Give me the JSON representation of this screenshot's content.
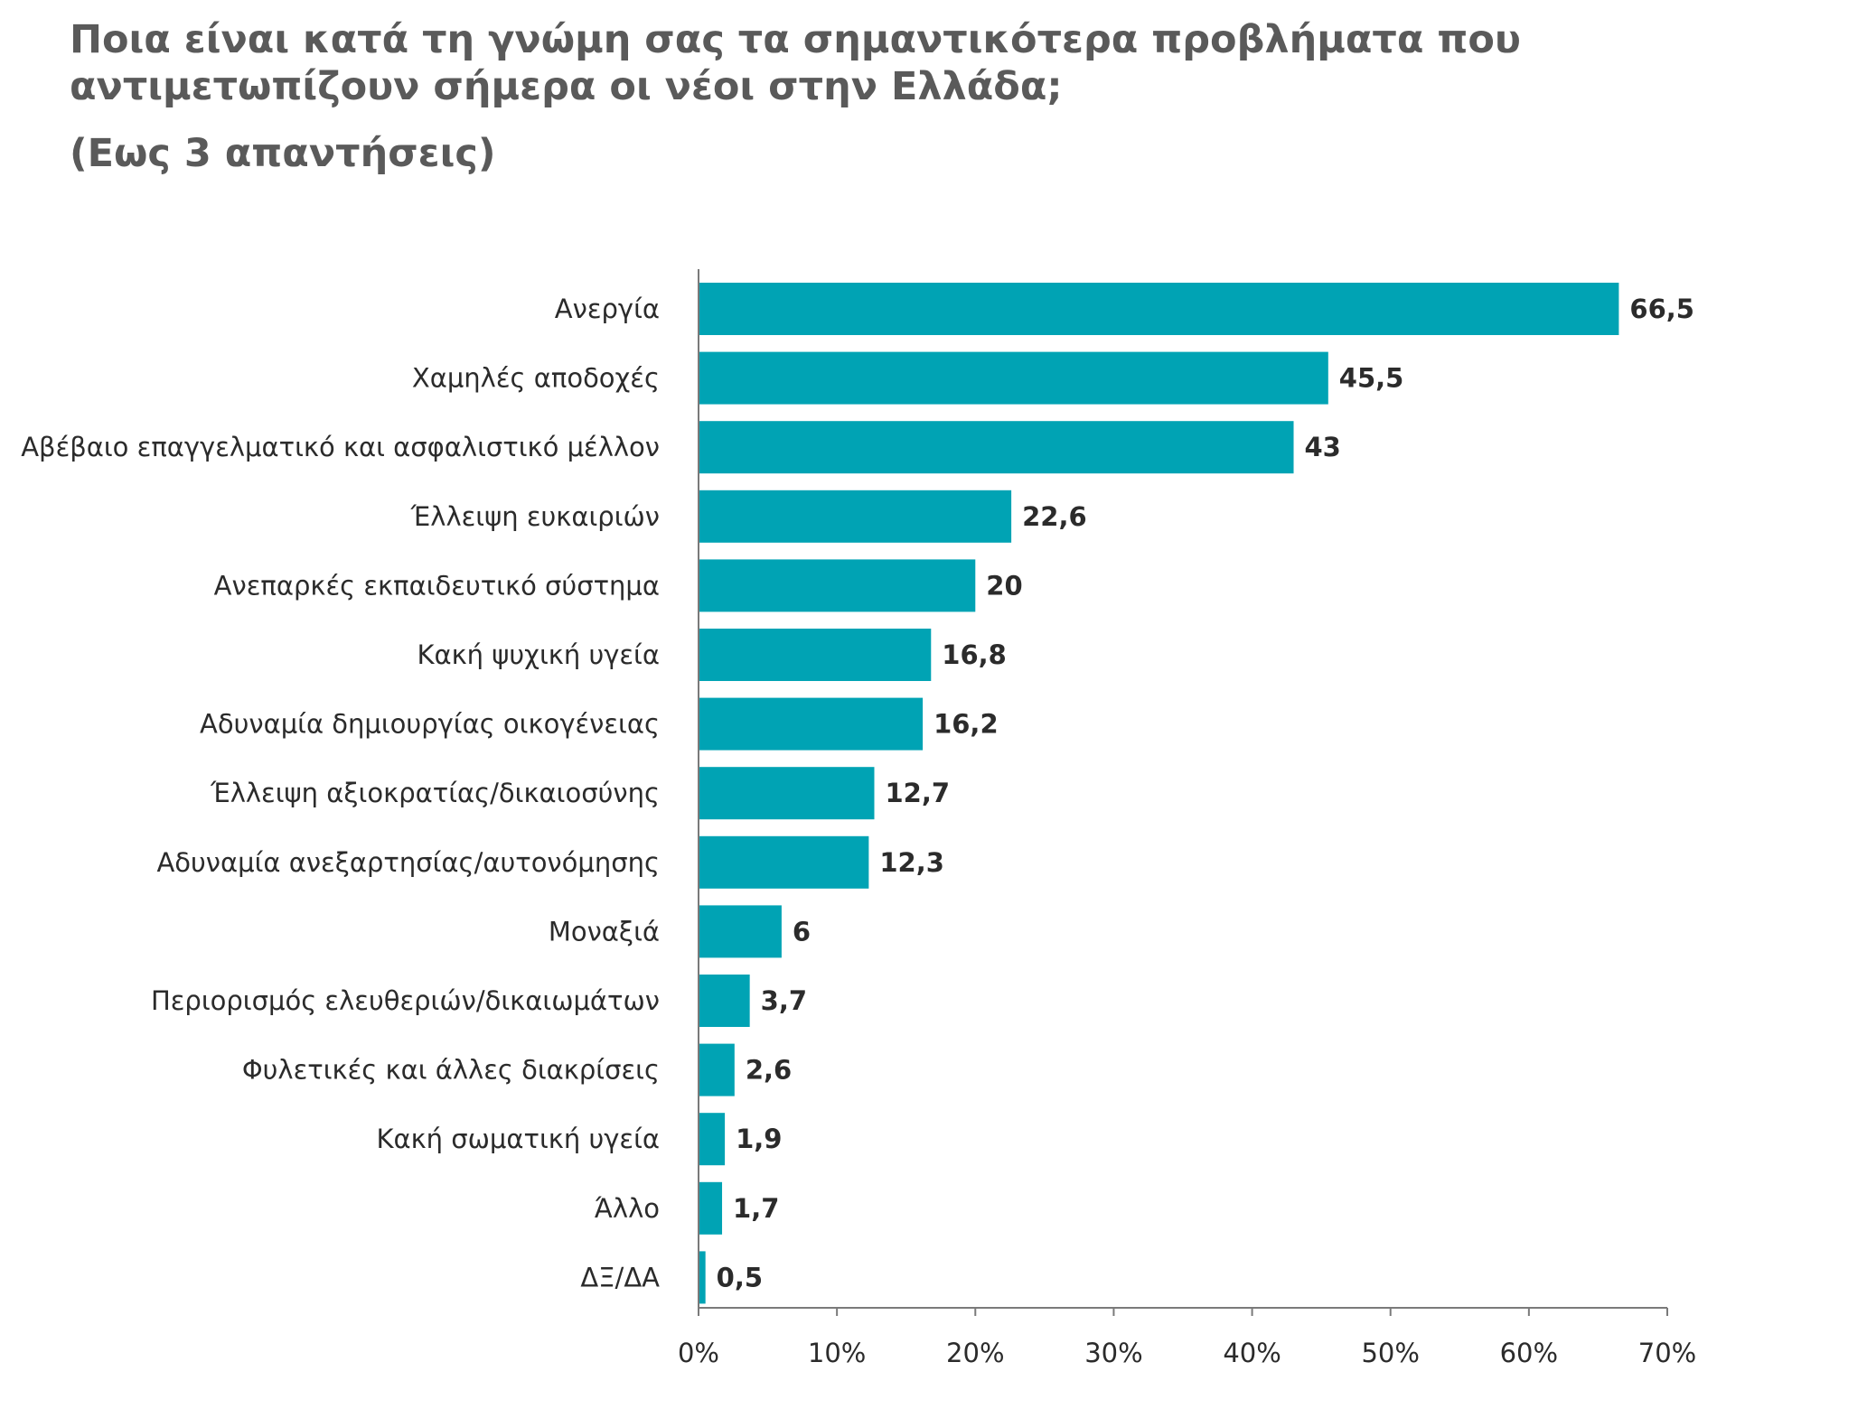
{
  "title": "Ποια είναι κατά τη γνώμη σας τα σημαντικότερα προβλήματα που αντιμετωπίζουν σήμερα οι νέοι στην Ελλάδα;",
  "subtitle": "(Εως 3 απαντήσεις)",
  "colors": {
    "bar": "#00a3b4",
    "axis": "#7a7a7a",
    "title": "#5a5a5a",
    "text": "#2b2b2b"
  },
  "chart_data": {
    "type": "bar",
    "orientation": "horizontal",
    "categories": [
      "Ανεργία",
      "Χαμηλές αποδοχές",
      "Αβέβαιο επαγγελματικό και ασφαλιστικό μέλλον",
      "Έλλειψη ευκαιριών",
      "Ανεπαρκές εκπαιδευτικό σύστημα",
      "Κακή ψυχική υγεία",
      "Αδυναμία δημιουργίας οικογένειας",
      "Έλλειψη αξιοκρατίας/δικαιοσύνης",
      "Αδυναμία ανεξαρτησίας/αυτονόμησης",
      "Μοναξιά",
      "Περιορισμός ελευθεριών/δικαιωμάτων",
      "Φυλετικές και άλλες διακρίσεις",
      "Κακή σωματική υγεία",
      "Άλλο",
      "ΔΞ/ΔΑ"
    ],
    "values": [
      66.5,
      45.5,
      43,
      22.6,
      20,
      16.8,
      16.2,
      12.7,
      12.3,
      6,
      3.7,
      2.6,
      1.9,
      1.7,
      0.5
    ],
    "value_labels": [
      "66,5",
      "45,5",
      "43",
      "22,6",
      "20",
      "16,8",
      "16,2",
      "12,7",
      "12,3",
      "6",
      "3,7",
      "2,6",
      "1,9",
      "1,7",
      "0,5"
    ],
    "xlim": [
      0,
      70
    ],
    "x_ticks": [
      "0%",
      "10%",
      "20%",
      "30%",
      "40%",
      "50%",
      "60%",
      "70%"
    ],
    "grid": false,
    "legend": "none"
  }
}
